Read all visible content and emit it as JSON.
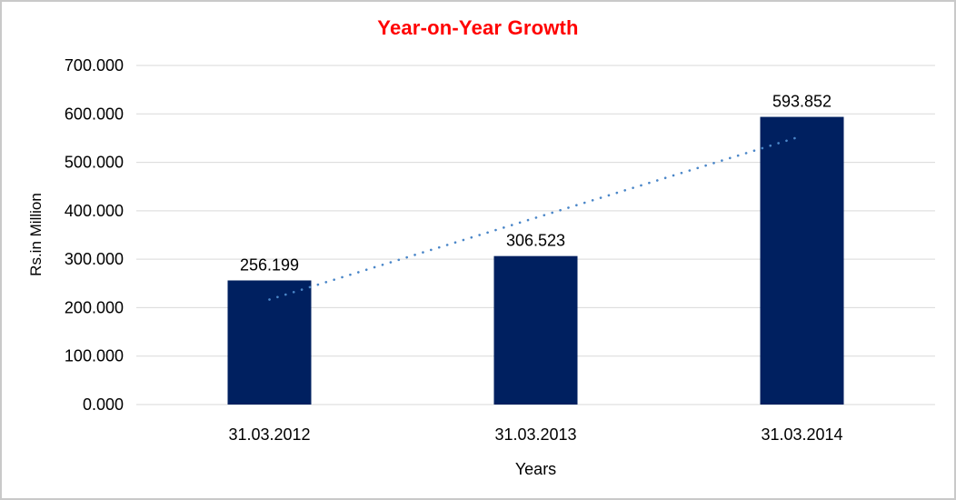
{
  "chart_data": {
    "type": "bar",
    "title": "Year-on-Year Growth",
    "title_color": "#ff0000",
    "xlabel": "Years",
    "ylabel": "Rs.in Million",
    "categories": [
      "31.03.2012",
      "31.03.2013",
      "31.03.2014"
    ],
    "values": [
      256.199,
      306.523,
      593.852
    ],
    "data_labels": [
      "256.199",
      "306.523",
      "593.852"
    ],
    "ylim": [
      0,
      700
    ],
    "ytick_values": [
      0,
      100,
      200,
      300,
      400,
      500,
      600,
      700
    ],
    "ytick_labels": [
      "0.000",
      "100.000",
      "200.000",
      "300.000",
      "400.000",
      "500.000",
      "600.000",
      "700.000"
    ],
    "grid": "horizontal",
    "legend": "none",
    "bar_color": "#002060",
    "gridline_color": "#d9d9d9",
    "frame_color": "#c9c9c9",
    "trendline": {
      "type": "linear",
      "style": "dotted",
      "color": "#4a86c8",
      "start_value": 216.7,
      "end_value": 554.4
    }
  }
}
